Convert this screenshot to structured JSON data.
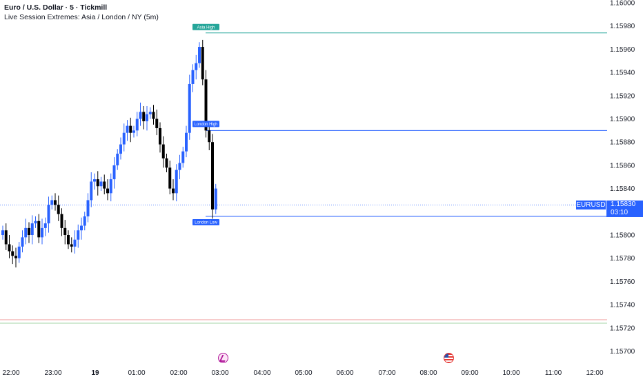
{
  "header": {
    "title": "Euro / U.S. Dollar · 5 · Tickmill",
    "subtitle": "Live Session Extremes: Asia / London / NY (5m)"
  },
  "price_axis": {
    "labels": [
      "1.16000",
      "1.15980",
      "1.15960",
      "1.15940",
      "1.15920",
      "1.15900",
      "1.15880",
      "1.15860",
      "1.15840",
      "1.15820",
      "1.15800",
      "1.15780",
      "1.15760",
      "1.15740",
      "1.15720",
      "1.15700"
    ]
  },
  "time_axis": {
    "labels": [
      "22:00",
      "23:00",
      "19",
      "01:00",
      "02:00",
      "03:00",
      "04:00",
      "05:00",
      "06:00",
      "07:00",
      "08:00",
      "09:00",
      "10:00",
      "11:00",
      "12:00"
    ]
  },
  "current_price": {
    "symbol": "EURUSD",
    "price": "1.15830",
    "countdown": "03:10"
  },
  "session_levels": [
    {
      "label": "Asia High",
      "price": 1.15974,
      "color": "#26a69a"
    },
    {
      "label": "London High",
      "price": 1.1589,
      "color": "#2962ff"
    },
    {
      "label": "London Low",
      "price": 1.15816,
      "color": "#2962ff"
    }
  ],
  "reference_lines": [
    {
      "price": 1.15727,
      "color": "#ef9a9a"
    },
    {
      "price": 1.15724,
      "color": "#a5d6a7"
    }
  ],
  "colors": {
    "up": "#2962ff",
    "down": "#000000",
    "asia": "#26a69a",
    "london": "#2962ff",
    "badge": "#2962ff"
  },
  "events": [
    "flash-icon",
    "us-flag-icon"
  ]
}
